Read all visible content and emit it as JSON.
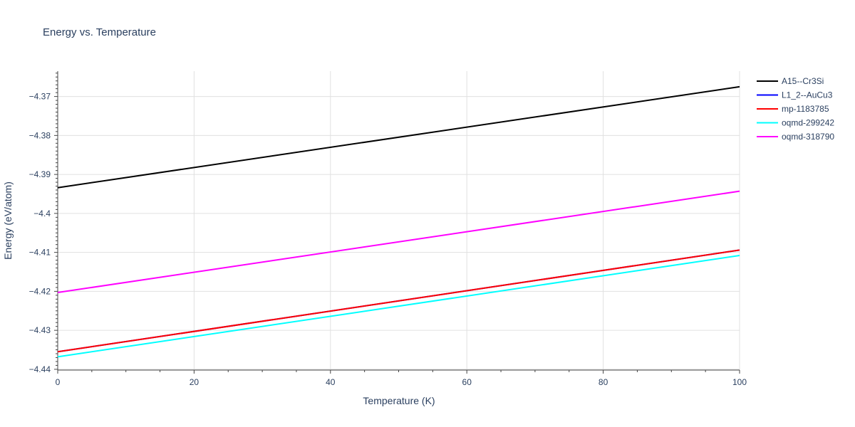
{
  "chart_data": {
    "type": "line",
    "title": "Energy vs. Temperature",
    "xlabel": "Temperature (K)",
    "ylabel": "Energy (eV/atom)",
    "xlim": [
      0,
      100
    ],
    "ylim": [
      -4.4402,
      -4.3635
    ],
    "x_ticks": [
      0,
      20,
      40,
      60,
      80,
      100
    ],
    "x_tick_labels": [
      "0",
      "20",
      "40",
      "60",
      "80",
      "100"
    ],
    "y_ticks": [
      -4.44,
      -4.43,
      -4.42,
      -4.41,
      -4.4,
      -4.39,
      -4.38,
      -4.37
    ],
    "y_tick_labels": [
      "−4.44",
      "−4.43",
      "−4.42",
      "−4.41",
      "−4.4",
      "−4.39",
      "−4.38",
      "−4.37"
    ],
    "grid": true,
    "legend_position": "top-right",
    "series": [
      {
        "name": "A15--Cr3Si",
        "color": "#000000",
        "x": [
          0,
          100
        ],
        "y": [
          -4.3934,
          -4.3675
        ]
      },
      {
        "name": "L1_2--AuCu3",
        "color": "#0000ff",
        "x": [
          0,
          100
        ],
        "y": [
          -4.4355,
          -4.4094
        ]
      },
      {
        "name": "mp-1183785",
        "color": "#ff0000",
        "x": [
          0,
          100
        ],
        "y": [
          -4.4355,
          -4.4094
        ]
      },
      {
        "name": "oqmd-299242",
        "color": "#00ffff",
        "x": [
          0,
          100
        ],
        "y": [
          -4.4368,
          -4.4108
        ]
      },
      {
        "name": "oqmd-318790",
        "color": "#ff00ff",
        "x": [
          0,
          100
        ],
        "y": [
          -4.4203,
          -4.3943
        ]
      }
    ]
  }
}
